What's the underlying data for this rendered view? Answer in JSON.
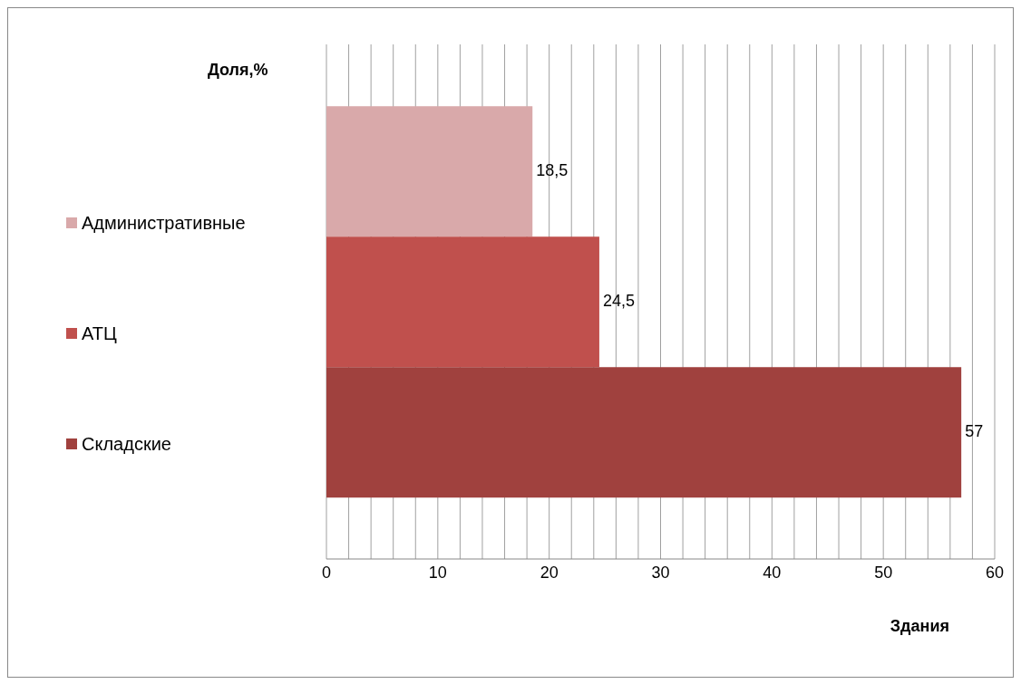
{
  "chart_data": {
    "type": "bar",
    "orientation": "horizontal",
    "annotations": [
      "Доля,%"
    ],
    "xlabel": "Здания",
    "categories": [
      null
    ],
    "series": [
      {
        "name": "Административные",
        "color": "#d9a9aa",
        "values": [
          18.5
        ],
        "value_labels": [
          "18,5"
        ]
      },
      {
        "name": "АТЦ",
        "color": "#c0504d",
        "values": [
          24.5
        ],
        "value_labels": [
          "24,5"
        ]
      },
      {
        "name": "Складские",
        "color": "#a0413e",
        "values": [
          57
        ],
        "value_labels": [
          "57"
        ]
      }
    ],
    "xlim": [
      0,
      60
    ],
    "xticks": [
      0,
      {
        "value": 2,
        "label": null
      },
      {
        "value": 4,
        "label": null
      },
      {
        "value": 6,
        "label": null
      },
      {
        "value": 8,
        "label": null
      },
      10,
      {
        "value": 12,
        "label": null
      },
      {
        "value": 14,
        "label": null
      },
      {
        "value": 16,
        "label": null
      },
      {
        "value": 18,
        "label": null
      },
      20,
      {
        "value": 22,
        "label": null
      },
      {
        "value": 24,
        "label": null
      },
      {
        "value": 26,
        "label": null
      },
      {
        "value": 28,
        "label": null
      },
      30,
      {
        "value": 32,
        "label": null
      },
      {
        "value": 34,
        "label": null
      },
      {
        "value": 36,
        "label": null
      },
      {
        "value": 38,
        "label": null
      },
      40,
      {
        "value": 42,
        "label": null
      },
      {
        "value": 44,
        "label": null
      },
      {
        "value": 46,
        "label": null
      },
      {
        "value": 48,
        "label": null
      },
      50,
      {
        "value": 52,
        "label": null
      },
      {
        "value": 54,
        "label": null
      },
      {
        "value": 56,
        "label": null
      },
      {
        "value": 58,
        "label": null
      },
      60
    ],
    "grid": "x",
    "legend": "left"
  }
}
